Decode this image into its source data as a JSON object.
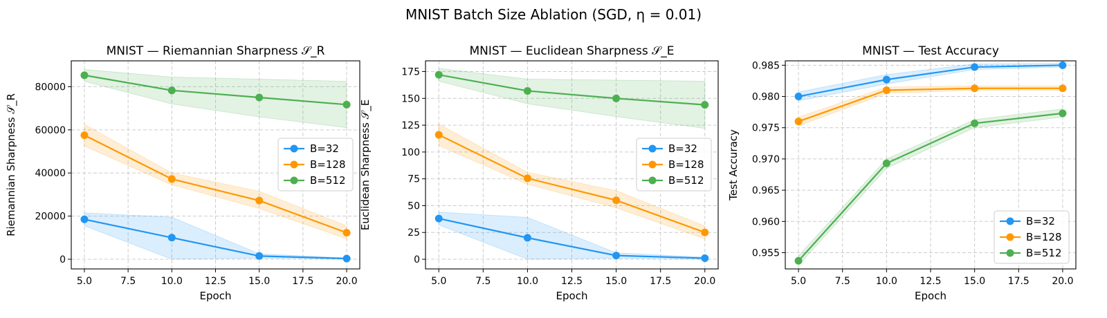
{
  "figure": {
    "suptitle": "MNIST Batch Size Ablation (SGD, η = 0.01)"
  },
  "colors": {
    "B=32": "#2196f3",
    "B=128": "#ff9800",
    "B=512": "#4caf50"
  },
  "chart_data": [
    {
      "type": "line",
      "title": "MNIST — Riemannian Sharpness 𝒮_R",
      "xlabel": "Epoch",
      "ylabel": "Riemannian Sharpness 𝒮_R",
      "x": [
        5,
        10,
        15,
        20
      ],
      "xlim": [
        4.25,
        20.75
      ],
      "ylim": [
        -4500,
        92000
      ],
      "xticks": [
        5.0,
        7.5,
        10.0,
        12.5,
        15.0,
        17.5,
        20.0
      ],
      "yticks": [
        0,
        20000,
        40000,
        60000,
        80000
      ],
      "grid": true,
      "legend_position": "center-right",
      "series": [
        {
          "name": "B=32",
          "values": [
            18500,
            10000,
            1500,
            300
          ],
          "lower": [
            15500,
            0,
            500,
            100
          ],
          "upper": [
            21500,
            19500,
            2500,
            600
          ]
        },
        {
          "name": "B=128",
          "values": [
            57500,
            37200,
            27200,
            12300
          ],
          "lower": [
            52500,
            34500,
            23500,
            9500
          ],
          "upper": [
            62500,
            40000,
            31500,
            15500
          ]
        },
        {
          "name": "B=512",
          "values": [
            85300,
            78300,
            75000,
            71700
          ],
          "lower": [
            82500,
            72000,
            66000,
            61000
          ],
          "upper": [
            88000,
            84500,
            83500,
            82500
          ]
        }
      ]
    },
    {
      "type": "line",
      "title": "MNIST — Euclidean Sharpness 𝒮_E",
      "xlabel": "Epoch",
      "ylabel": "Euclidean Sharpness 𝒮_E",
      "x": [
        5,
        10,
        15,
        20
      ],
      "xlim": [
        4.25,
        20.75
      ],
      "ylim": [
        -9,
        185
      ],
      "xticks": [
        5.0,
        7.5,
        10.0,
        12.5,
        15.0,
        17.5,
        20.0
      ],
      "yticks": [
        0,
        25,
        50,
        75,
        100,
        125,
        150,
        175
      ],
      "grid": true,
      "legend_position": "center-right",
      "series": [
        {
          "name": "B=32",
          "values": [
            38,
            20,
            3.5,
            1
          ],
          "lower": [
            32,
            0,
            1,
            0
          ],
          "upper": [
            44,
            39,
            6,
            2
          ]
        },
        {
          "name": "B=128",
          "values": [
            116,
            75.5,
            55,
            25
          ],
          "lower": [
            106,
            70,
            48,
            19
          ],
          "upper": [
            126,
            81,
            64,
            31
          ]
        },
        {
          "name": "B=512",
          "values": [
            172,
            157,
            150,
            144
          ],
          "lower": [
            166,
            145,
            133,
            122
          ],
          "upper": [
            178,
            168,
            167,
            166
          ]
        }
      ]
    },
    {
      "type": "line",
      "title": "MNIST — Test Accuracy",
      "xlabel": "Epoch",
      "ylabel": "Test Accuracy",
      "x": [
        5,
        10,
        15,
        20
      ],
      "xlim": [
        4.25,
        20.75
      ],
      "ylim": [
        0.9524,
        0.9857
      ],
      "xticks": [
        5.0,
        7.5,
        10.0,
        12.5,
        15.0,
        17.5,
        20.0
      ],
      "yticks": [
        0.955,
        0.96,
        0.965,
        0.97,
        0.975,
        0.98,
        0.985
      ],
      "ytick_labels": [
        "0.955",
        "0.960",
        "0.965",
        "0.970",
        "0.975",
        "0.980",
        "0.985"
      ],
      "grid": true,
      "legend_position": "bottom-right",
      "series": [
        {
          "name": "B=32",
          "values": [
            0.98,
            0.9827,
            0.9847,
            0.985
          ],
          "lower": [
            0.9793,
            0.982,
            0.9843,
            0.9847
          ],
          "upper": [
            0.9807,
            0.9835,
            0.9852,
            0.9853
          ]
        },
        {
          "name": "B=128",
          "values": [
            0.976,
            0.981,
            0.9813,
            0.9813
          ],
          "lower": [
            0.9753,
            0.9805,
            0.981,
            0.981
          ],
          "upper": [
            0.9767,
            0.9815,
            0.9817,
            0.9817
          ]
        },
        {
          "name": "B=512",
          "values": [
            0.9537,
            0.9693,
            0.9757,
            0.9773
          ],
          "lower": [
            0.953,
            0.9685,
            0.975,
            0.9767
          ],
          "upper": [
            0.9545,
            0.97,
            0.9763,
            0.978
          ]
        }
      ]
    }
  ]
}
